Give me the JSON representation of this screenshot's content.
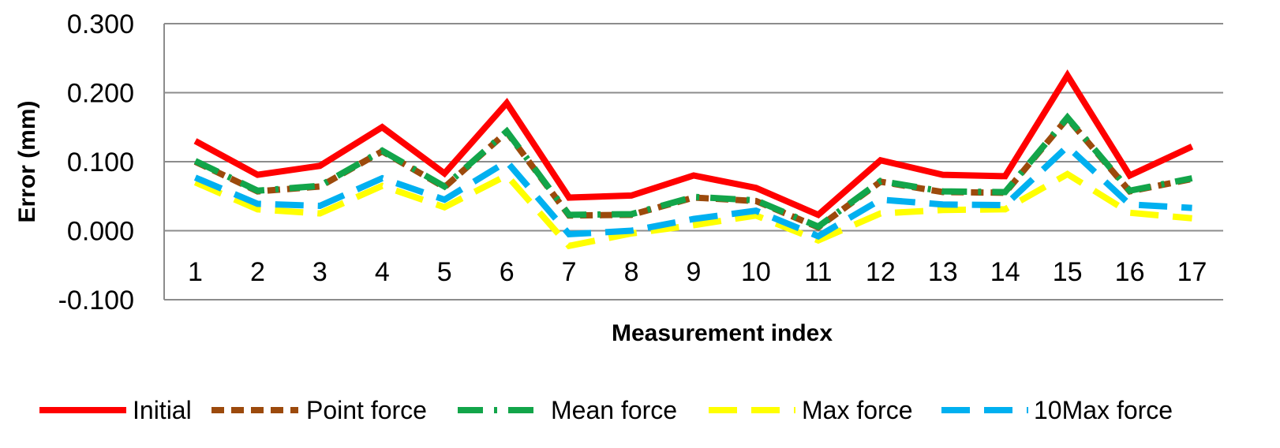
{
  "chart_data": {
    "type": "line",
    "xlabel": "Measurement index",
    "ylabel": "Error (mm)",
    "categories": [
      "1",
      "2",
      "3",
      "4",
      "5",
      "6",
      "7",
      "8",
      "9",
      "10",
      "11",
      "12",
      "13",
      "14",
      "15",
      "16",
      "17"
    ],
    "ylim": [
      -0.1,
      0.3
    ],
    "yticks": [
      "0.300",
      "0.200",
      "0.100",
      "0.000",
      "-0.100"
    ],
    "ytick_values": [
      0.3,
      0.2,
      0.1,
      0.0,
      -0.1
    ],
    "grid": true,
    "legend_position": "bottom",
    "series": [
      {
        "name": "Initial",
        "color": "#ff0000",
        "style": "solid",
        "values": [
          0.13,
          0.081,
          0.094,
          0.15,
          0.083,
          0.185,
          0.048,
          0.051,
          0.08,
          0.062,
          0.023,
          0.102,
          0.081,
          0.079,
          0.225,
          0.08,
          0.122
        ]
      },
      {
        "name": "Point force",
        "color": "#9c4a0c",
        "style": "dash",
        "values": [
          0.1,
          0.057,
          0.064,
          0.115,
          0.063,
          0.143,
          0.022,
          0.023,
          0.048,
          0.043,
          0.005,
          0.071,
          0.056,
          0.055,
          0.163,
          0.057,
          0.075
        ]
      },
      {
        "name": "Mean force",
        "color": "#12a54a",
        "style": "dashdot",
        "values": [
          0.101,
          0.058,
          0.065,
          0.116,
          0.064,
          0.144,
          0.023,
          0.024,
          0.049,
          0.044,
          0.006,
          0.072,
          0.057,
          0.056,
          0.164,
          0.058,
          0.076
        ]
      },
      {
        "name": "Max force",
        "color": "#ffff00",
        "style": "longdash",
        "values": [
          0.07,
          0.031,
          0.025,
          0.065,
          0.034,
          0.08,
          -0.022,
          -0.004,
          0.008,
          0.022,
          -0.014,
          0.025,
          0.03,
          0.031,
          0.082,
          0.026,
          0.018
        ]
      },
      {
        "name": "10Max force",
        "color": "#00b0f0",
        "style": "longdash",
        "values": [
          0.077,
          0.039,
          0.036,
          0.076,
          0.045,
          0.1,
          -0.005,
          0.0,
          0.017,
          0.029,
          -0.008,
          0.045,
          0.038,
          0.037,
          0.122,
          0.038,
          0.033
        ]
      }
    ]
  }
}
